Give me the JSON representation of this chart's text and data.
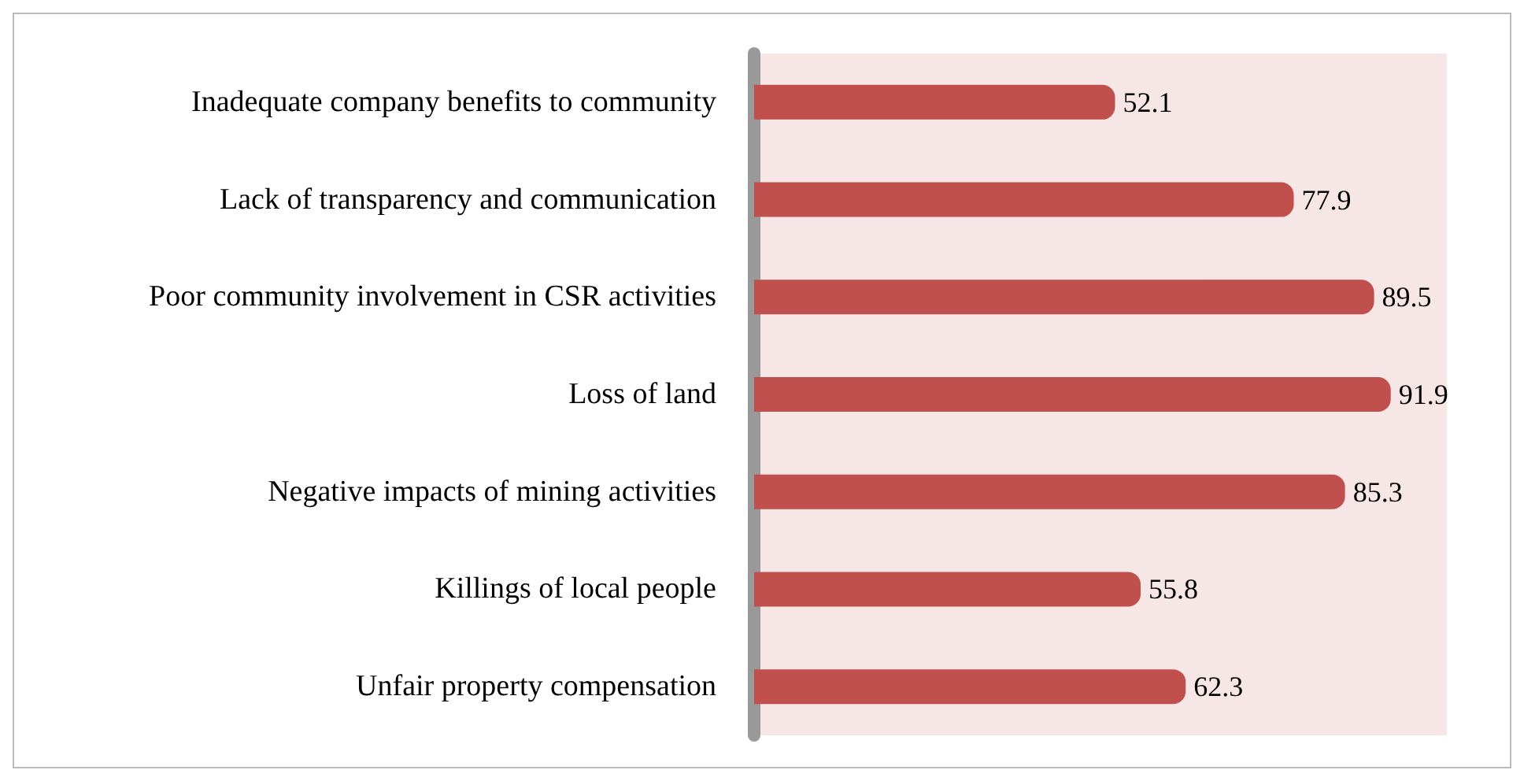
{
  "chart_data": {
    "type": "bar",
    "orientation": "horizontal",
    "categories": [
      "Inadequate company benefits to community",
      "Lack of transparency and communication",
      "Poor community involvement in CSR activities",
      "Loss of land",
      "Negative impacts of mining activities",
      "Killings of local people",
      "Unfair property compensation"
    ],
    "values": [
      52.1,
      77.9,
      89.5,
      91.9,
      85.3,
      55.8,
      62.3
    ],
    "color": "#c0504d",
    "data_labels": true,
    "grid": false
  }
}
